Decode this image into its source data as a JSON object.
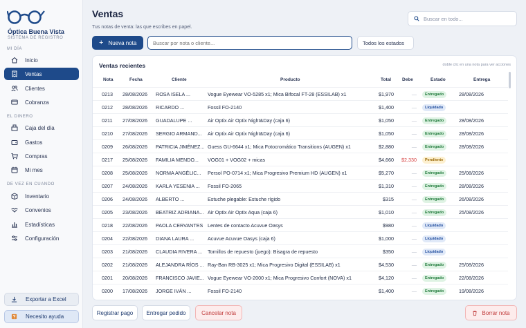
{
  "brand": {
    "name": "Óptica Buena Vista",
    "subtitle": "SISTEMA DE REGISTRO"
  },
  "sidebar": {
    "sections": [
      "MI DÍA",
      "EL DINERO",
      "DE VEZ EN CUANDO"
    ],
    "items": [
      {
        "label": "Inicio",
        "icon": "home-icon"
      },
      {
        "label": "Ventas",
        "icon": "receipt-icon",
        "active": true
      },
      {
        "label": "Clientes",
        "icon": "users-icon"
      },
      {
        "label": "Cobranza",
        "icon": "card-icon"
      },
      {
        "label": "Caja del día",
        "icon": "cash-register-icon"
      },
      {
        "label": "Gastos",
        "icon": "wallet-icon"
      },
      {
        "label": "Compras",
        "icon": "cart-icon"
      },
      {
        "label": "Mi mes",
        "icon": "calendar-icon"
      },
      {
        "label": "Inventario",
        "icon": "box-icon"
      },
      {
        "label": "Convenios",
        "icon": "handshake-icon"
      },
      {
        "label": "Estadísticas",
        "icon": "chart-icon"
      },
      {
        "label": "Configuración",
        "icon": "sliders-icon"
      }
    ],
    "export_label": "Exportar a Excel",
    "help_label": "Necesito ayuda"
  },
  "header": {
    "title": "Ventas",
    "subtitle": "Tus notas de venta: las que escribes en papel.",
    "search_placeholder": "Buscar en todo..."
  },
  "toolbar": {
    "new_label": "Nueva nota",
    "filter_placeholder": "Buscar por nota o cliente...",
    "status_value": "Todos los estados"
  },
  "table": {
    "title": "Ventas recientes",
    "hint": "doble clic en una nota para ver acciones",
    "columns": [
      "Nota",
      "Fecha",
      "Cliente",
      "Producto",
      "Total",
      "Debe",
      "Estado",
      "Entrega"
    ],
    "rows": [
      {
        "nota": "0213",
        "fecha": "28/08/2026",
        "cliente": "ROSA ISELA ...",
        "producto": "Vogue Eyewear VO-5285 x1; Mica Bifocal FT-28 (ESSILAB) x1",
        "total": "$1,970",
        "debe": "—",
        "estado": "Entregado",
        "entrega": "28/08/2026"
      },
      {
        "nota": "0212",
        "fecha": "28/08/2026",
        "cliente": "RICARDO ...",
        "producto": "Fossil FO-2140",
        "total": "$1,400",
        "debe": "—",
        "estado": "Liquidado",
        "entrega": ""
      },
      {
        "nota": "0211",
        "fecha": "27/08/2026",
        "cliente": "GUADALUPE ...",
        "producto": "Air Optix Air Optix Night&Day (caja 6)",
        "total": "$1,050",
        "debe": "—",
        "estado": "Entregado",
        "entrega": "28/08/2026"
      },
      {
        "nota": "0210",
        "fecha": "27/08/2026",
        "cliente": "SERGIO ARMAND...",
        "producto": "Air Optix Air Optix Night&Day (caja 6)",
        "total": "$1,050",
        "debe": "—",
        "estado": "Entregado",
        "entrega": "28/08/2026"
      },
      {
        "nota": "0209",
        "fecha": "26/08/2026",
        "cliente": "PATRICIA JIMÉNEZ...",
        "producto": "Guess GU-6644 x1; Mica Fotocromático Transitions (AUGEN) x1",
        "total": "$2,880",
        "debe": "—",
        "estado": "Entregado",
        "entrega": "28/08/2026"
      },
      {
        "nota": "0217",
        "fecha": "25/08/2026",
        "cliente": "FAMILIA MENDO...",
        "producto": "VOG01 + VOG02 + micas",
        "total": "$4,660",
        "debe": "$2,330",
        "estado": "Pendiente",
        "entrega": ""
      },
      {
        "nota": "0208",
        "fecha": "25/08/2026",
        "cliente": "NORMA ANGÉLIC...",
        "producto": "Persol PO-0714 x1; Mica Progresivo Premium HD (AUGEN) x1",
        "total": "$5,270",
        "debe": "—",
        "estado": "Entregado",
        "entrega": "25/08/2026"
      },
      {
        "nota": "0207",
        "fecha": "24/08/2026",
        "cliente": "KARLA YESENIA ...",
        "producto": "Fossil FO-2065",
        "total": "$1,310",
        "debe": "—",
        "estado": "Entregado",
        "entrega": "28/08/2026"
      },
      {
        "nota": "0206",
        "fecha": "24/08/2026",
        "cliente": "ALBERTO ...",
        "producto": "Estuche plegable: Estuche rígido",
        "total": "$315",
        "debe": "—",
        "estado": "Entregado",
        "entrega": "26/08/2026"
      },
      {
        "nota": "0205",
        "fecha": "23/08/2026",
        "cliente": "BEATRIZ ADRIANA...",
        "producto": "Air Optix Air Optix Aqua (caja 6)",
        "total": "$1,010",
        "debe": "—",
        "estado": "Entregado",
        "entrega": "25/08/2026"
      },
      {
        "nota": "0218",
        "fecha": "22/08/2026",
        "cliente": "PAOLA CERVANTES",
        "producto": "Lentes de contacto Acuvue Oasys",
        "total": "$980",
        "debe": "—",
        "estado": "Liquidado",
        "entrega": ""
      },
      {
        "nota": "0204",
        "fecha": "22/08/2026",
        "cliente": "DIANA LAURA ...",
        "producto": "Acuvue Acuvue Oasys (caja 6)",
        "total": "$1,000",
        "debe": "—",
        "estado": "Liquidado",
        "entrega": ""
      },
      {
        "nota": "0203",
        "fecha": "21/08/2026",
        "cliente": "CLAUDIA RIVERA ...",
        "producto": "Tornillos de repuesto (juego): Bisagra de repuesto",
        "total": "$350",
        "debe": "—",
        "estado": "Liquidado",
        "entrega": ""
      },
      {
        "nota": "0202",
        "fecha": "21/08/2026",
        "cliente": "ALEJANDRA RÍOS ...",
        "producto": "Ray-Ban RB-3025 x1; Mica Progresivo Digital (ESSILAB) x1",
        "total": "$4,530",
        "debe": "—",
        "estado": "Entregado",
        "entrega": "25/08/2026"
      },
      {
        "nota": "0201",
        "fecha": "20/08/2026",
        "cliente": "FRANCISCO JAVIE...",
        "producto": "Vogue Eyewear VO-2000 x1; Mica Progresivo Confort (NOVA) x1",
        "total": "$4,120",
        "debe": "—",
        "estado": "Entregado",
        "entrega": "22/08/2026"
      },
      {
        "nota": "0200",
        "fecha": "17/08/2026",
        "cliente": "JORGE IVÁN ...",
        "producto": "Fossil FO-2140",
        "total": "$1,400",
        "debe": "—",
        "estado": "Entregado",
        "entrega": "19/08/2026"
      }
    ]
  },
  "actions": {
    "register_payment": "Registrar pago",
    "deliver_order": "Entregar pedido",
    "cancel_note": "Cancelar nota",
    "delete_note": "Borrar nota"
  },
  "colors": {
    "primary": "#1e4a8a",
    "danger": "#c03a3a",
    "delivered": "#1f7a3a",
    "paid": "#2450a0",
    "pending": "#9a6a0a"
  }
}
